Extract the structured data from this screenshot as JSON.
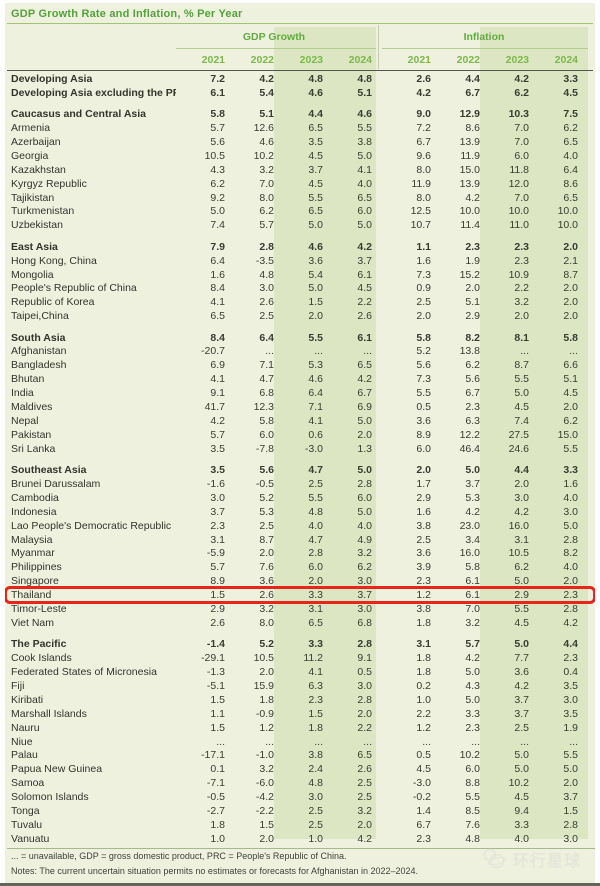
{
  "title": "GDP Growth Rate and Inflation, % Per Year",
  "groups": [
    {
      "label": "GDP Growth",
      "years": [
        "2021",
        "2022",
        "2023",
        "2024"
      ]
    },
    {
      "label": "Inflation",
      "years": [
        "2021",
        "2022",
        "2023",
        "2024"
      ]
    }
  ],
  "rows": [
    {
      "name": "Developing Asia",
      "bold": true,
      "gap_before": false,
      "highlight": false,
      "values": [
        "7.2",
        "4.2",
        "4.8",
        "4.8",
        "2.6",
        "4.4",
        "4.2",
        "3.3"
      ]
    },
    {
      "name": "Developing Asia excluding the PRC",
      "bold": true,
      "gap_before": false,
      "highlight": false,
      "values": [
        "6.1",
        "5.4",
        "4.6",
        "5.1",
        "4.2",
        "6.7",
        "6.2",
        "4.5"
      ]
    },
    {
      "name": "Caucasus and Central Asia",
      "bold": true,
      "gap_before": true,
      "highlight": false,
      "values": [
        "5.8",
        "5.1",
        "4.4",
        "4.6",
        "9.0",
        "12.9",
        "10.3",
        "7.5"
      ]
    },
    {
      "name": "Armenia",
      "bold": false,
      "gap_before": false,
      "highlight": false,
      "values": [
        "5.7",
        "12.6",
        "6.5",
        "5.5",
        "7.2",
        "8.6",
        "7.0",
        "6.2"
      ]
    },
    {
      "name": "Azerbaijan",
      "bold": false,
      "gap_before": false,
      "highlight": false,
      "values": [
        "5.6",
        "4.6",
        "3.5",
        "3.8",
        "6.7",
        "13.9",
        "7.0",
        "6.5"
      ]
    },
    {
      "name": "Georgia",
      "bold": false,
      "gap_before": false,
      "highlight": false,
      "values": [
        "10.5",
        "10.2",
        "4.5",
        "5.0",
        "9.6",
        "11.9",
        "6.0",
        "4.0"
      ]
    },
    {
      "name": "Kazakhstan",
      "bold": false,
      "gap_before": false,
      "highlight": false,
      "values": [
        "4.3",
        "3.2",
        "3.7",
        "4.1",
        "8.0",
        "15.0",
        "11.8",
        "6.4"
      ]
    },
    {
      "name": "Kyrgyz Republic",
      "bold": false,
      "gap_before": false,
      "highlight": false,
      "values": [
        "6.2",
        "7.0",
        "4.5",
        "4.0",
        "11.9",
        "13.9",
        "12.0",
        "8.6"
      ]
    },
    {
      "name": "Tajikistan",
      "bold": false,
      "gap_before": false,
      "highlight": false,
      "values": [
        "9.2",
        "8.0",
        "5.5",
        "6.5",
        "8.0",
        "4.2",
        "7.0",
        "6.5"
      ]
    },
    {
      "name": "Turkmenistan",
      "bold": false,
      "gap_before": false,
      "highlight": false,
      "values": [
        "5.0",
        "6.2",
        "6.5",
        "6.0",
        "12.5",
        "10.0",
        "10.0",
        "10.0"
      ]
    },
    {
      "name": "Uzbekistan",
      "bold": false,
      "gap_before": false,
      "highlight": false,
      "values": [
        "7.4",
        "5.7",
        "5.0",
        "5.0",
        "10.7",
        "11.4",
        "11.0",
        "10.0"
      ]
    },
    {
      "name": "East Asia",
      "bold": true,
      "gap_before": true,
      "highlight": false,
      "values": [
        "7.9",
        "2.8",
        "4.6",
        "4.2",
        "1.1",
        "2.3",
        "2.3",
        "2.0"
      ]
    },
    {
      "name": "Hong Kong, China",
      "bold": false,
      "gap_before": false,
      "highlight": false,
      "values": [
        "6.4",
        "-3.5",
        "3.6",
        "3.7",
        "1.6",
        "1.9",
        "2.3",
        "2.1"
      ]
    },
    {
      "name": "Mongolia",
      "bold": false,
      "gap_before": false,
      "highlight": false,
      "values": [
        "1.6",
        "4.8",
        "5.4",
        "6.1",
        "7.3",
        "15.2",
        "10.9",
        "8.7"
      ]
    },
    {
      "name": "People's Republic of China",
      "bold": false,
      "gap_before": false,
      "highlight": false,
      "values": [
        "8.4",
        "3.0",
        "5.0",
        "4.5",
        "0.9",
        "2.0",
        "2.2",
        "2.0"
      ]
    },
    {
      "name": "Republic of Korea",
      "bold": false,
      "gap_before": false,
      "highlight": false,
      "values": [
        "4.1",
        "2.6",
        "1.5",
        "2.2",
        "2.5",
        "5.1",
        "3.2",
        "2.0"
      ]
    },
    {
      "name": "Taipei,China",
      "bold": false,
      "gap_before": false,
      "highlight": false,
      "values": [
        "6.5",
        "2.5",
        "2.0",
        "2.6",
        "2.0",
        "2.9",
        "2.0",
        "2.0"
      ]
    },
    {
      "name": "South Asia",
      "bold": true,
      "gap_before": true,
      "highlight": false,
      "values": [
        "8.4",
        "6.4",
        "5.5",
        "6.1",
        "5.8",
        "8.2",
        "8.1",
        "5.8"
      ]
    },
    {
      "name": "Afghanistan",
      "bold": false,
      "gap_before": false,
      "highlight": false,
      "values": [
        "-20.7",
        "...",
        "...",
        "...",
        "5.2",
        "13.8",
        "...",
        "..."
      ]
    },
    {
      "name": "Bangladesh",
      "bold": false,
      "gap_before": false,
      "highlight": false,
      "values": [
        "6.9",
        "7.1",
        "5.3",
        "6.5",
        "5.6",
        "6.2",
        "8.7",
        "6.6"
      ]
    },
    {
      "name": "Bhutan",
      "bold": false,
      "gap_before": false,
      "highlight": false,
      "values": [
        "4.1",
        "4.7",
        "4.6",
        "4.2",
        "7.3",
        "5.6",
        "5.5",
        "5.1"
      ]
    },
    {
      "name": "India",
      "bold": false,
      "gap_before": false,
      "highlight": false,
      "values": [
        "9.1",
        "6.8",
        "6.4",
        "6.7",
        "5.5",
        "6.7",
        "5.0",
        "4.5"
      ]
    },
    {
      "name": "Maldives",
      "bold": false,
      "gap_before": false,
      "highlight": false,
      "values": [
        "41.7",
        "12.3",
        "7.1",
        "6.9",
        "0.5",
        "2.3",
        "4.5",
        "2.0"
      ]
    },
    {
      "name": "Nepal",
      "bold": false,
      "gap_before": false,
      "highlight": false,
      "values": [
        "4.2",
        "5.8",
        "4.1",
        "5.0",
        "3.6",
        "6.3",
        "7.4",
        "6.2"
      ]
    },
    {
      "name": "Pakistan",
      "bold": false,
      "gap_before": false,
      "highlight": false,
      "values": [
        "5.7",
        "6.0",
        "0.6",
        "2.0",
        "8.9",
        "12.2",
        "27.5",
        "15.0"
      ]
    },
    {
      "name": "Sri Lanka",
      "bold": false,
      "gap_before": false,
      "highlight": false,
      "values": [
        "3.5",
        "-7.8",
        "-3.0",
        "1.3",
        "6.0",
        "46.4",
        "24.6",
        "5.5"
      ]
    },
    {
      "name": "Southeast Asia",
      "bold": true,
      "gap_before": true,
      "highlight": false,
      "values": [
        "3.5",
        "5.6",
        "4.7",
        "5.0",
        "2.0",
        "5.0",
        "4.4",
        "3.3"
      ]
    },
    {
      "name": "Brunei Darussalam",
      "bold": false,
      "gap_before": false,
      "highlight": false,
      "values": [
        "-1.6",
        "-0.5",
        "2.5",
        "2.8",
        "1.7",
        "3.7",
        "2.0",
        "1.6"
      ]
    },
    {
      "name": "Cambodia",
      "bold": false,
      "gap_before": false,
      "highlight": false,
      "values": [
        "3.0",
        "5.2",
        "5.5",
        "6.0",
        "2.9",
        "5.3",
        "3.0",
        "4.0"
      ]
    },
    {
      "name": "Indonesia",
      "bold": false,
      "gap_before": false,
      "highlight": false,
      "values": [
        "3.7",
        "5.3",
        "4.8",
        "5.0",
        "1.6",
        "4.2",
        "4.2",
        "3.0"
      ]
    },
    {
      "name": "Lao People's Democratic Republic",
      "bold": false,
      "gap_before": false,
      "highlight": false,
      "values": [
        "2.3",
        "2.5",
        "4.0",
        "4.0",
        "3.8",
        "23.0",
        "16.0",
        "5.0"
      ]
    },
    {
      "name": "Malaysia",
      "bold": false,
      "gap_before": false,
      "highlight": false,
      "values": [
        "3.1",
        "8.7",
        "4.7",
        "4.9",
        "2.5",
        "3.4",
        "3.1",
        "2.8"
      ]
    },
    {
      "name": "Myanmar",
      "bold": false,
      "gap_before": false,
      "highlight": false,
      "values": [
        "-5.9",
        "2.0",
        "2.8",
        "3.2",
        "3.6",
        "16.0",
        "10.5",
        "8.2"
      ]
    },
    {
      "name": "Philippines",
      "bold": false,
      "gap_before": false,
      "highlight": false,
      "values": [
        "5.7",
        "7.6",
        "6.0",
        "6.2",
        "3.9",
        "5.8",
        "6.2",
        "4.0"
      ]
    },
    {
      "name": "Singapore",
      "bold": false,
      "gap_before": false,
      "highlight": false,
      "values": [
        "8.9",
        "3.6",
        "2.0",
        "3.0",
        "2.3",
        "6.1",
        "5.0",
        "2.0"
      ]
    },
    {
      "name": "Thailand",
      "bold": false,
      "gap_before": false,
      "highlight": true,
      "values": [
        "1.5",
        "2.6",
        "3.3",
        "3.7",
        "1.2",
        "6.1",
        "2.9",
        "2.3"
      ]
    },
    {
      "name": "Timor-Leste",
      "bold": false,
      "gap_before": false,
      "highlight": false,
      "values": [
        "2.9",
        "3.2",
        "3.1",
        "3.0",
        "3.8",
        "7.0",
        "5.5",
        "2.8"
      ]
    },
    {
      "name": "Viet Nam",
      "bold": false,
      "gap_before": false,
      "highlight": false,
      "values": [
        "2.6",
        "8.0",
        "6.5",
        "6.8",
        "1.8",
        "3.2",
        "4.5",
        "4.2"
      ]
    },
    {
      "name": "The Pacific",
      "bold": true,
      "gap_before": true,
      "highlight": false,
      "values": [
        "-1.4",
        "5.2",
        "3.3",
        "2.8",
        "3.1",
        "5.7",
        "5.0",
        "4.4"
      ]
    },
    {
      "name": "Cook Islands",
      "bold": false,
      "gap_before": false,
      "highlight": false,
      "values": [
        "-29.1",
        "10.5",
        "11.2",
        "9.1",
        "1.8",
        "4.2",
        "7.7",
        "2.3"
      ]
    },
    {
      "name": "Federated States of Micronesia",
      "bold": false,
      "gap_before": false,
      "highlight": false,
      "values": [
        "-1.3",
        "2.0",
        "4.1",
        "0.5",
        "1.8",
        "5.0",
        "3.6",
        "0.4"
      ]
    },
    {
      "name": "Fiji",
      "bold": false,
      "gap_before": false,
      "highlight": false,
      "values": [
        "-5.1",
        "15.9",
        "6.3",
        "3.0",
        "0.2",
        "4.3",
        "4.2",
        "3.5"
      ]
    },
    {
      "name": "Kiribati",
      "bold": false,
      "gap_before": false,
      "highlight": false,
      "values": [
        "1.5",
        "1.8",
        "2.3",
        "2.8",
        "1.0",
        "5.0",
        "3.7",
        "3.0"
      ]
    },
    {
      "name": "Marshall Islands",
      "bold": false,
      "gap_before": false,
      "highlight": false,
      "values": [
        "1.1",
        "-0.9",
        "1.5",
        "2.0",
        "2.2",
        "3.3",
        "3.7",
        "3.5"
      ]
    },
    {
      "name": "Nauru",
      "bold": false,
      "gap_before": false,
      "highlight": false,
      "values": [
        "1.5",
        "1.2",
        "1.8",
        "2.2",
        "1.2",
        "2.3",
        "2.5",
        "1.9"
      ]
    },
    {
      "name": "Niue",
      "bold": false,
      "gap_before": false,
      "highlight": false,
      "values": [
        "...",
        "...",
        "...",
        "...",
        "...",
        "...",
        "...",
        "..."
      ]
    },
    {
      "name": "Palau",
      "bold": false,
      "gap_before": false,
      "highlight": false,
      "values": [
        "-17.1",
        "-1.0",
        "3.8",
        "6.5",
        "0.5",
        "10.2",
        "5.0",
        "5.5"
      ]
    },
    {
      "name": "Papua New Guinea",
      "bold": false,
      "gap_before": false,
      "highlight": false,
      "values": [
        "0.1",
        "3.2",
        "2.4",
        "2.6",
        "4.5",
        "6.0",
        "5.0",
        "5.0"
      ]
    },
    {
      "name": "Samoa",
      "bold": false,
      "gap_before": false,
      "highlight": false,
      "values": [
        "-7.1",
        "-6.0",
        "4.8",
        "2.5",
        "-3.0",
        "8.8",
        "10.2",
        "2.0"
      ]
    },
    {
      "name": "Solomon Islands",
      "bold": false,
      "gap_before": false,
      "highlight": false,
      "values": [
        "-0.5",
        "-4.2",
        "3.0",
        "2.5",
        "-0.2",
        "5.5",
        "4.5",
        "3.7"
      ]
    },
    {
      "name": "Tonga",
      "bold": false,
      "gap_before": false,
      "highlight": false,
      "values": [
        "-2.7",
        "-2.2",
        "2.5",
        "3.2",
        "1.4",
        "8.5",
        "9.4",
        "1.5"
      ]
    },
    {
      "name": "Tuvalu",
      "bold": false,
      "gap_before": false,
      "highlight": false,
      "values": [
        "1.8",
        "1.5",
        "2.5",
        "2.0",
        "6.7",
        "7.6",
        "3.3",
        "2.8"
      ]
    },
    {
      "name": "Vanuatu",
      "bold": false,
      "gap_before": false,
      "highlight": false,
      "values": [
        "1.0",
        "2.0",
        "1.0",
        "4.2",
        "2.3",
        "4.8",
        "4.0",
        "3.0"
      ]
    }
  ],
  "footnotes": {
    "abbrev": "... = unavailable, GDP = gross domestic product, PRC = People's Republic of China.",
    "notes": "Notes: The current uncertain situation permits no estimates or forecasts for Afghanistan in 2022–2024."
  },
  "watermark": {
    "text": "环行星球",
    "icon": "globe-icon"
  },
  "colors": {
    "panel_bg": "#edf1de",
    "forecast_band": "#dce6c3",
    "accent_green": "#55a13c",
    "year_green": "#7cb84a",
    "text_dark": "#3a3c32",
    "highlight_red": "#e8241b"
  }
}
